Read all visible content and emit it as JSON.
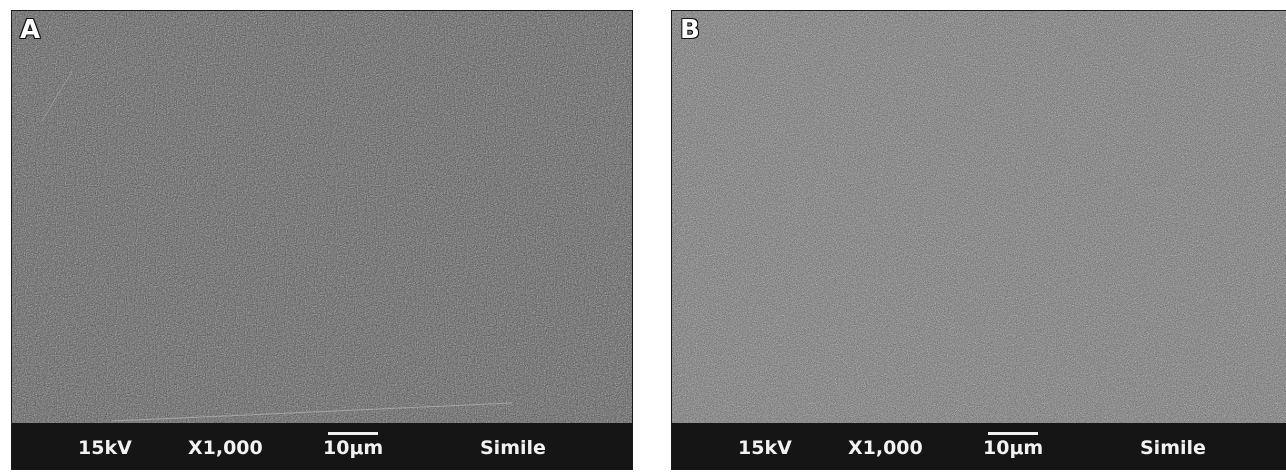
{
  "panels": [
    {
      "letter": "A",
      "voltage": "15kV",
      "magnification": "X1,000",
      "scale_label": "10μm",
      "sample_label": "Simile"
    },
    {
      "letter": "B",
      "voltage": "15kV",
      "magnification": "X1,000",
      "scale_label": "10μm",
      "sample_label": "Simile"
    }
  ],
  "colors": {
    "micrograph_base": "#5a5a5a",
    "info_bar": "#151515",
    "text": "#f2f2f2"
  }
}
